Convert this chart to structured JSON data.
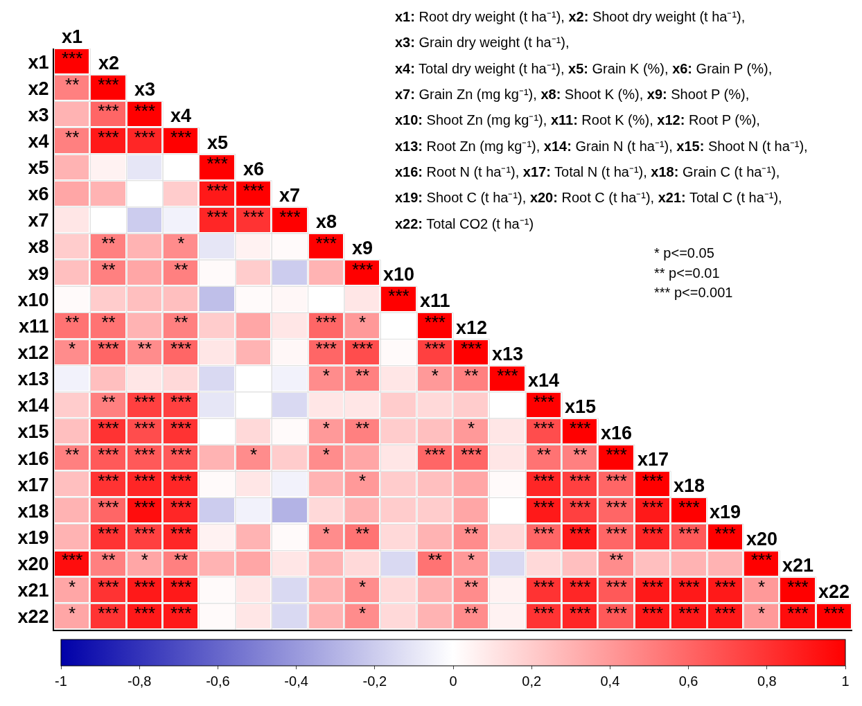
{
  "chart_data": {
    "type": "heatmap",
    "categories": [
      "x1",
      "x2",
      "x3",
      "x4",
      "x5",
      "x6",
      "x7",
      "x8",
      "x9",
      "x10",
      "x11",
      "x12",
      "x13",
      "x14",
      "x15",
      "x16",
      "x17",
      "x18",
      "x19",
      "x20",
      "x21",
      "x22"
    ],
    "y_categories": [
      "x1",
      "x2",
      "x3",
      "x4",
      "x5",
      "x6",
      "x7",
      "x8",
      "x9",
      "x10",
      "x11",
      "x12",
      "x13",
      "x14",
      "x15",
      "x16",
      "x17",
      "x18",
      "x19",
      "x20",
      "x21",
      "x22"
    ],
    "cells": [
      [
        1,
        null,
        null,
        null,
        null,
        null,
        null,
        null,
        null,
        null,
        null,
        null,
        null,
        null,
        null,
        null,
        null,
        null,
        null,
        null,
        null,
        null
      ],
      [
        0.5,
        1,
        null,
        null,
        null,
        null,
        null,
        null,
        null,
        null,
        null,
        null,
        null,
        null,
        null,
        null,
        null,
        null,
        null,
        null,
        null,
        null
      ],
      [
        0.3,
        0.6,
        1,
        null,
        null,
        null,
        null,
        null,
        null,
        null,
        null,
        null,
        null,
        null,
        null,
        null,
        null,
        null,
        null,
        null,
        null,
        null
      ],
      [
        0.5,
        0.9,
        0.85,
        1,
        null,
        null,
        null,
        null,
        null,
        null,
        null,
        null,
        null,
        null,
        null,
        null,
        null,
        null,
        null,
        null,
        null,
        null
      ],
      [
        0.3,
        0.05,
        -0.1,
        0,
        1,
        null,
        null,
        null,
        null,
        null,
        null,
        null,
        null,
        null,
        null,
        null,
        null,
        null,
        null,
        null,
        null,
        null
      ],
      [
        0.35,
        0.3,
        0,
        0.2,
        0.9,
        1,
        null,
        null,
        null,
        null,
        null,
        null,
        null,
        null,
        null,
        null,
        null,
        null,
        null,
        null,
        null,
        null
      ],
      [
        0.1,
        0,
        -0.2,
        -0.05,
        0.85,
        0.8,
        1,
        null,
        null,
        null,
        null,
        null,
        null,
        null,
        null,
        null,
        null,
        null,
        null,
        null,
        null,
        null
      ],
      [
        0.2,
        0.5,
        0.3,
        0.45,
        -0.1,
        0.05,
        0.02,
        1,
        null,
        null,
        null,
        null,
        null,
        null,
        null,
        null,
        null,
        null,
        null,
        null,
        null,
        null
      ],
      [
        0.25,
        0.5,
        0.35,
        0.5,
        0.02,
        0.2,
        -0.2,
        0.3,
        1,
        null,
        null,
        null,
        null,
        null,
        null,
        null,
        null,
        null,
        null,
        null,
        null,
        null
      ],
      [
        0.02,
        0.2,
        0.25,
        0.25,
        -0.25,
        0.02,
        0.03,
        0,
        0.1,
        1,
        null,
        null,
        null,
        null,
        null,
        null,
        null,
        null,
        null,
        null,
        null,
        null
      ],
      [
        0.55,
        0.55,
        0.3,
        0.5,
        0.2,
        0.35,
        0.1,
        0.6,
        0.4,
        0,
        1,
        null,
        null,
        null,
        null,
        null,
        null,
        null,
        null,
        null,
        null,
        null
      ],
      [
        0.45,
        0.6,
        0.45,
        0.6,
        0.1,
        0.3,
        0.03,
        0.6,
        0.7,
        0.02,
        0.75,
        1,
        null,
        null,
        null,
        null,
        null,
        null,
        null,
        null,
        null,
        null
      ],
      [
        -0.05,
        0.25,
        0.1,
        0.15,
        -0.15,
        0,
        -0.05,
        0.45,
        0.5,
        0.1,
        0.4,
        0.5,
        1,
        null,
        null,
        null,
        null,
        null,
        null,
        null,
        null,
        null
      ],
      [
        0.2,
        0.5,
        0.75,
        0.75,
        -0.1,
        0,
        -0.15,
        0.1,
        0.1,
        0.2,
        0.15,
        0.2,
        0,
        1,
        null,
        null,
        null,
        null,
        null,
        null,
        null,
        null
      ],
      [
        0.25,
        0.8,
        0.7,
        0.8,
        0,
        0.15,
        0.02,
        0.4,
        0.5,
        0.2,
        0.25,
        0.4,
        0.1,
        0.7,
        1,
        null,
        null,
        null,
        null,
        null,
        null,
        null
      ],
      [
        0.5,
        0.65,
        0.65,
        0.65,
        0.3,
        0.45,
        0.2,
        0.45,
        0.35,
        0.1,
        0.6,
        0.6,
        0.1,
        0.55,
        0.5,
        1,
        null,
        null,
        null,
        null,
        null,
        null
      ],
      [
        0.25,
        0.8,
        0.85,
        0.85,
        0.02,
        0.1,
        -0.05,
        0.3,
        0.4,
        0.2,
        0.25,
        0.35,
        0.02,
        0.85,
        0.75,
        0.6,
        1,
        null,
        null,
        null,
        null,
        null
      ],
      [
        0.3,
        0.6,
        0.95,
        0.85,
        -0.2,
        -0.05,
        -0.3,
        0.15,
        0.3,
        0.2,
        0.2,
        0.35,
        0,
        0.9,
        0.75,
        0.6,
        0.9,
        1,
        null,
        null,
        null,
        null
      ],
      [
        0.3,
        0.8,
        0.75,
        0.85,
        0.05,
        0.3,
        0.02,
        0.45,
        0.55,
        0.15,
        0.3,
        0.45,
        0.15,
        0.6,
        0.9,
        0.6,
        0.85,
        0.65,
        1,
        null,
        null,
        null
      ],
      [
        0.95,
        0.5,
        0.35,
        0.5,
        0.3,
        0.35,
        0.1,
        0.3,
        0.15,
        -0.15,
        0.55,
        0.4,
        -0.15,
        0.15,
        0.25,
        0.45,
        0.25,
        0.3,
        0.3,
        1,
        null,
        null
      ],
      [
        0.35,
        0.8,
        0.9,
        0.9,
        0.02,
        0.1,
        -0.15,
        0.3,
        0.45,
        0.15,
        0.3,
        0.45,
        0.05,
        0.8,
        0.85,
        0.65,
        0.9,
        0.9,
        0.9,
        0.4,
        1,
        null
      ],
      [
        0.35,
        0.8,
        0.9,
        0.9,
        0.02,
        0.1,
        -0.15,
        0.3,
        0.45,
        0.15,
        0.3,
        0.45,
        0.05,
        0.8,
        0.85,
        0.65,
        0.9,
        0.9,
        0.9,
        0.4,
        0.95,
        1
      ]
    ],
    "cell_labels": [
      [
        "***",
        null,
        null,
        null,
        null,
        null,
        null,
        null,
        null,
        null,
        null,
        null,
        null,
        null,
        null,
        null,
        null,
        null,
        null,
        null,
        null,
        null
      ],
      [
        "**",
        "***",
        null,
        null,
        null,
        null,
        null,
        null,
        null,
        null,
        null,
        null,
        null,
        null,
        null,
        null,
        null,
        null,
        null,
        null,
        null,
        null
      ],
      [
        null,
        "***",
        "***",
        null,
        null,
        null,
        null,
        null,
        null,
        null,
        null,
        null,
        null,
        null,
        null,
        null,
        null,
        null,
        null,
        null,
        null,
        null
      ],
      [
        "**",
        "***",
        "***",
        "***",
        null,
        null,
        null,
        null,
        null,
        null,
        null,
        null,
        null,
        null,
        null,
        null,
        null,
        null,
        null,
        null,
        null,
        null
      ],
      [
        null,
        null,
        null,
        null,
        "***",
        null,
        null,
        null,
        null,
        null,
        null,
        null,
        null,
        null,
        null,
        null,
        null,
        null,
        null,
        null,
        null,
        null
      ],
      [
        null,
        null,
        null,
        null,
        "***",
        "***",
        null,
        null,
        null,
        null,
        null,
        null,
        null,
        null,
        null,
        null,
        null,
        null,
        null,
        null,
        null,
        null
      ],
      [
        null,
        null,
        null,
        null,
        "***",
        "***",
        "***",
        null,
        null,
        null,
        null,
        null,
        null,
        null,
        null,
        null,
        null,
        null,
        null,
        null,
        null,
        null
      ],
      [
        null,
        "**",
        null,
        "*",
        null,
        null,
        null,
        "***",
        null,
        null,
        null,
        null,
        null,
        null,
        null,
        null,
        null,
        null,
        null,
        null,
        null,
        null
      ],
      [
        null,
        "**",
        null,
        "**",
        null,
        null,
        null,
        null,
        "***",
        null,
        null,
        null,
        null,
        null,
        null,
        null,
        null,
        null,
        null,
        null,
        null,
        null
      ],
      [
        null,
        null,
        null,
        null,
        null,
        null,
        null,
        null,
        null,
        "***",
        null,
        null,
        null,
        null,
        null,
        null,
        null,
        null,
        null,
        null,
        null,
        null
      ],
      [
        "**",
        "**",
        null,
        "**",
        null,
        null,
        null,
        "***",
        "*",
        null,
        "***",
        null,
        null,
        null,
        null,
        null,
        null,
        null,
        null,
        null,
        null,
        null
      ],
      [
        "*",
        "***",
        "**",
        "***",
        null,
        null,
        null,
        "***",
        "***",
        null,
        "***",
        "***",
        null,
        null,
        null,
        null,
        null,
        null,
        null,
        null,
        null,
        null
      ],
      [
        null,
        null,
        null,
        null,
        null,
        null,
        null,
        "*",
        "**",
        null,
        "*",
        "**",
        "***",
        null,
        null,
        null,
        null,
        null,
        null,
        null,
        null,
        null
      ],
      [
        null,
        "**",
        "***",
        "***",
        null,
        null,
        null,
        null,
        null,
        null,
        null,
        null,
        null,
        "***",
        null,
        null,
        null,
        null,
        null,
        null,
        null,
        null
      ],
      [
        null,
        "***",
        "***",
        "***",
        null,
        null,
        null,
        "*",
        "**",
        null,
        null,
        "*",
        null,
        "***",
        "***",
        null,
        null,
        null,
        null,
        null,
        null,
        null
      ],
      [
        "**",
        "***",
        "***",
        "***",
        null,
        "*",
        null,
        "*",
        null,
        null,
        "***",
        "***",
        null,
        "**",
        "**",
        "***",
        null,
        null,
        null,
        null,
        null,
        null
      ],
      [
        null,
        "***",
        "***",
        "***",
        null,
        null,
        null,
        null,
        "*",
        null,
        null,
        null,
        null,
        "***",
        "***",
        "***",
        "***",
        null,
        null,
        null,
        null,
        null
      ],
      [
        null,
        "***",
        "***",
        "***",
        null,
        null,
        null,
        null,
        null,
        null,
        null,
        null,
        null,
        "***",
        "***",
        "***",
        "***",
        "***",
        null,
        null,
        null,
        null
      ],
      [
        null,
        "***",
        "***",
        "***",
        null,
        null,
        null,
        "*",
        "**",
        null,
        null,
        "**",
        null,
        "***",
        "***",
        "***",
        "***",
        "***",
        "***",
        null,
        null,
        null
      ],
      [
        "***",
        "**",
        "*",
        "**",
        null,
        null,
        null,
        null,
        null,
        null,
        "**",
        "*",
        null,
        null,
        null,
        "**",
        null,
        null,
        null,
        "***",
        null,
        null
      ],
      [
        "*",
        "***",
        "***",
        "***",
        null,
        null,
        null,
        null,
        "*",
        null,
        null,
        "**",
        null,
        "***",
        "***",
        "***",
        "***",
        "***",
        "***",
        "*",
        "***",
        null
      ],
      [
        "*",
        "***",
        "***",
        "***",
        null,
        null,
        null,
        null,
        "*",
        null,
        null,
        "**",
        null,
        "***",
        "***",
        "***",
        "***",
        "***",
        "***",
        "*",
        "***",
        "***"
      ]
    ],
    "clim": [
      -1,
      1
    ],
    "cticks": [
      -1,
      {
        "value": -0.8,
        "label": "-0,8"
      },
      {
        "value": -0.6,
        "label": "-0,6"
      },
      {
        "value": -0.4,
        "label": "-0,4"
      },
      {
        "value": -0.2,
        "label": "-0,2"
      },
      0,
      {
        "value": 0.2,
        "label": "0,2"
      },
      {
        "value": 0.4,
        "label": "0,4"
      },
      {
        "value": 0.6,
        "label": "0,6"
      },
      {
        "value": 0.8,
        "label": "0,8"
      },
      1
    ],
    "colors": [
      "#0000a8",
      "#ffffff",
      "#ff0000"
    ],
    "annotations": [
      "x1: Root dry weight (t ha⁻¹), x2: Shoot dry weight (t ha⁻¹),",
      "x3: Grain dry weight (t ha⁻¹),",
      "x4: Total dry weight (t ha⁻¹), x5: Grain K (%), x6: Grain P (%),",
      "x7: Grain Zn (mg kg⁻¹), x8: Shoot K (%), x9: Shoot P (%),",
      "x10: Shoot Zn (mg kg⁻¹), x11: Root K (%), x12: Root P (%),",
      "x13: Root Zn (mg kg⁻¹), x14: Grain N (t ha⁻¹), x15: Shoot N (t ha⁻¹),",
      "x16: Root N (t ha⁻¹), x17: Total N (t ha⁻¹), x18: Grain C (t ha⁻¹),",
      "x19: Shoot C (t ha⁻¹), x20: Root C (t ha⁻¹), x21: Total C (t ha⁻¹),",
      "x22: Total CO2 (t ha⁻¹)",
      "* p<=0.05",
      "** p<=0.01",
      "*** p<=0.001"
    ]
  }
}
